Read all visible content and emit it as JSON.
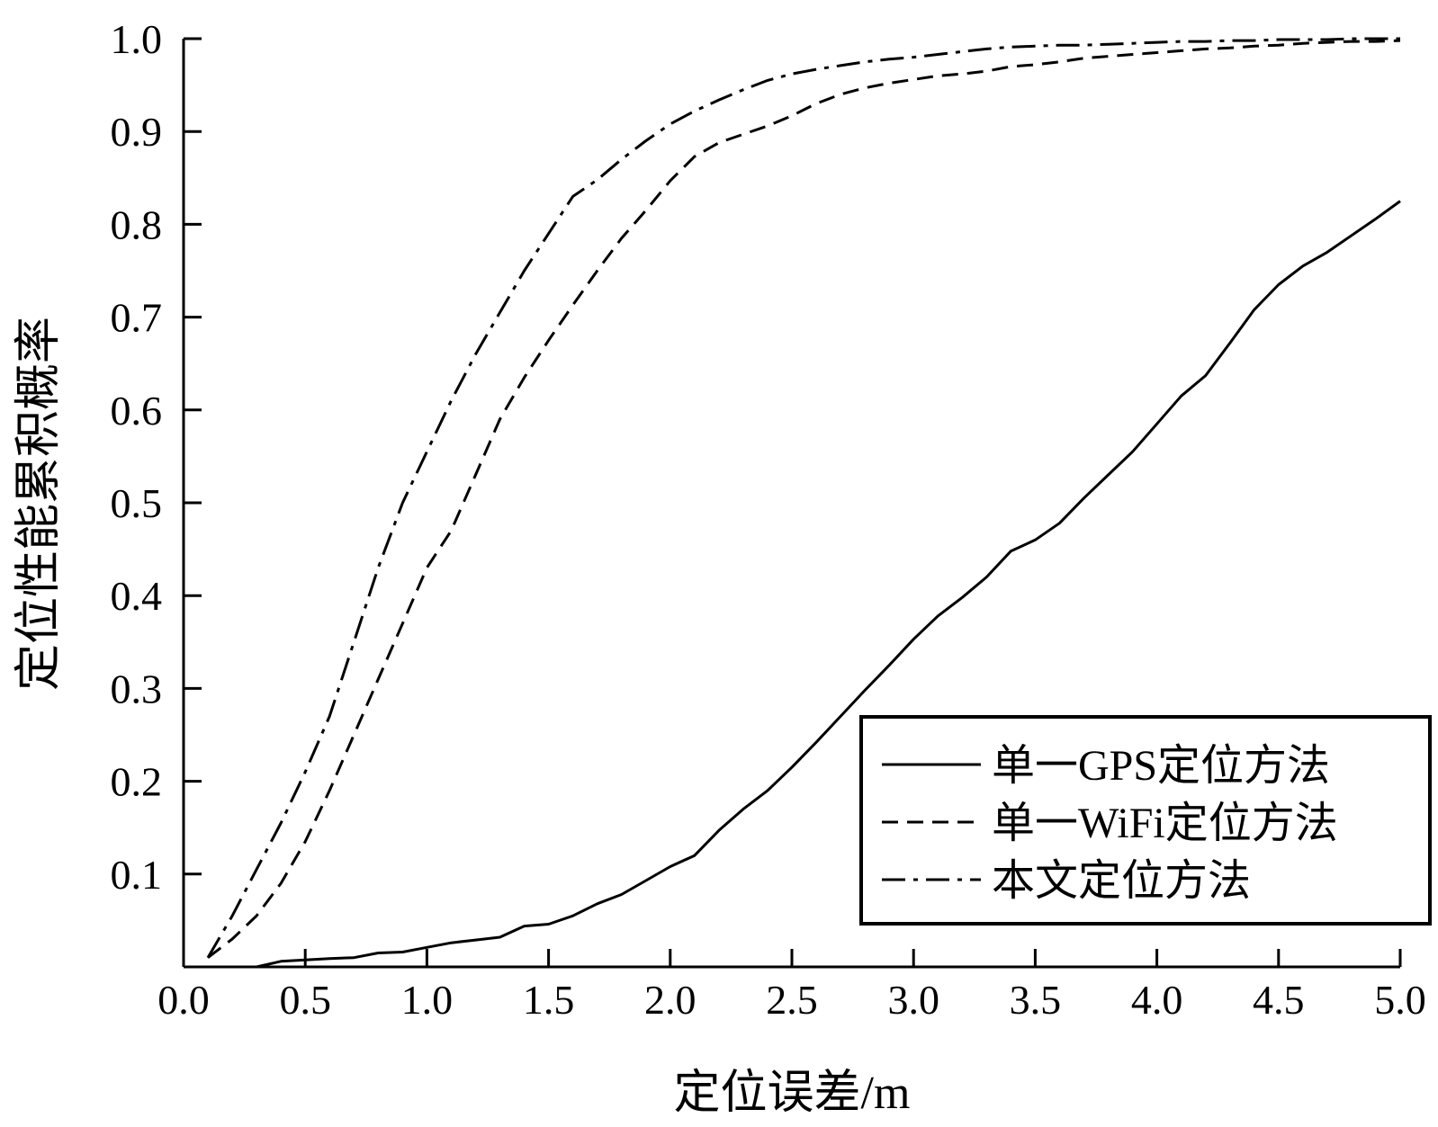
{
  "chart_data": {
    "type": "line",
    "title": "",
    "xlabel": "定位误差/m",
    "ylabel": "定位性能累积概率",
    "xlim": [
      0.0,
      5.0
    ],
    "ylim": [
      0.0,
      1.0
    ],
    "x_ticks": [
      "0.0",
      "0.5",
      "1.0",
      "1.5",
      "2.0",
      "2.5",
      "3.0",
      "3.5",
      "4.0",
      "4.5",
      "5.0"
    ],
    "y_ticks": [
      "0.1",
      "0.2",
      "0.3",
      "0.4",
      "0.5",
      "0.6",
      "0.7",
      "0.8",
      "0.9",
      "1.0"
    ],
    "grid": false,
    "legend_position": "bottom-right",
    "series": [
      {
        "name": "单一GPS定位方法",
        "line_style": "solid",
        "x": [
          0.1,
          0.3,
          0.4,
          0.6,
          0.7,
          0.8,
          0.9,
          1.0,
          1.1,
          1.2,
          1.3,
          1.4,
          1.5,
          1.6,
          1.7,
          1.8,
          1.9,
          2.0,
          2.1,
          2.2,
          2.3,
          2.4,
          2.5,
          2.6,
          2.7,
          2.8,
          2.9,
          3.0,
          3.1,
          3.2,
          3.3,
          3.4,
          3.5,
          3.6,
          3.7,
          3.8,
          3.9,
          4.0,
          4.1,
          4.2,
          4.3,
          4.4,
          4.5,
          4.6,
          4.7,
          4.8,
          4.9,
          5.0
        ],
        "y": [
          0.0,
          0.0,
          0.006,
          0.009,
          0.01,
          0.015,
          0.016,
          0.021,
          0.026,
          0.029,
          0.032,
          0.044,
          0.046,
          0.055,
          0.068,
          0.078,
          0.093,
          0.108,
          0.12,
          0.147,
          0.17,
          0.19,
          0.215,
          0.242,
          0.27,
          0.298,
          0.325,
          0.353,
          0.378,
          0.398,
          0.42,
          0.448,
          0.46,
          0.478,
          0.505,
          0.53,
          0.555,
          0.585,
          0.615,
          0.637,
          0.672,
          0.708,
          0.735,
          0.755,
          0.77,
          0.788,
          0.806,
          0.825
        ]
      },
      {
        "name": "单一WiFi定位方法",
        "line_style": "dashed",
        "x": [
          0.1,
          0.2,
          0.3,
          0.4,
          0.5,
          0.6,
          0.7,
          0.8,
          0.9,
          1.0,
          1.1,
          1.2,
          1.3,
          1.4,
          1.5,
          1.6,
          1.7,
          1.8,
          1.9,
          2.0,
          2.1,
          2.2,
          2.3,
          2.4,
          2.5,
          2.6,
          2.7,
          2.8,
          2.9,
          3.0,
          3.1,
          3.2,
          3.3,
          3.4,
          3.5,
          3.6,
          3.7,
          3.8,
          3.9,
          4.0,
          4.1,
          4.2,
          4.3,
          4.4,
          4.5,
          4.6,
          4.7,
          4.8,
          4.9,
          5.0
        ],
        "y": [
          0.01,
          0.03,
          0.055,
          0.09,
          0.135,
          0.19,
          0.25,
          0.31,
          0.37,
          0.43,
          0.47,
          0.53,
          0.59,
          0.635,
          0.675,
          0.713,
          0.75,
          0.785,
          0.815,
          0.847,
          0.873,
          0.888,
          0.897,
          0.906,
          0.917,
          0.93,
          0.94,
          0.947,
          0.952,
          0.956,
          0.96,
          0.962,
          0.965,
          0.97,
          0.972,
          0.975,
          0.979,
          0.981,
          0.983,
          0.985,
          0.987,
          0.989,
          0.99,
          0.992,
          0.993,
          0.995,
          0.996,
          0.997,
          0.997,
          0.998
        ]
      },
      {
        "name": "本文定位方法",
        "line_style": "dash-dot",
        "x": [
          0.1,
          0.2,
          0.3,
          0.4,
          0.5,
          0.6,
          0.7,
          0.8,
          0.9,
          1.0,
          1.1,
          1.2,
          1.3,
          1.4,
          1.5,
          1.6,
          1.7,
          1.8,
          1.9,
          2.0,
          2.1,
          2.2,
          2.3,
          2.4,
          2.5,
          2.6,
          2.7,
          2.8,
          2.9,
          3.0,
          3.1,
          3.2,
          3.3,
          3.4,
          3.5,
          3.6,
          3.7,
          3.8,
          3.9,
          4.0,
          4.1,
          4.2,
          4.3,
          4.4,
          4.5,
          4.6,
          4.7,
          4.8,
          4.9,
          5.0
        ],
        "y": [
          0.01,
          0.055,
          0.105,
          0.155,
          0.21,
          0.27,
          0.35,
          0.43,
          0.5,
          0.555,
          0.61,
          0.66,
          0.705,
          0.75,
          0.79,
          0.83,
          0.848,
          0.87,
          0.89,
          0.908,
          0.922,
          0.934,
          0.945,
          0.955,
          0.962,
          0.967,
          0.971,
          0.975,
          0.978,
          0.98,
          0.983,
          0.986,
          0.989,
          0.991,
          0.992,
          0.993,
          0.993,
          0.994,
          0.995,
          0.996,
          0.997,
          0.997,
          0.998,
          0.998,
          0.999,
          0.999,
          0.999,
          1.0,
          1.0,
          1.0
        ]
      }
    ]
  }
}
